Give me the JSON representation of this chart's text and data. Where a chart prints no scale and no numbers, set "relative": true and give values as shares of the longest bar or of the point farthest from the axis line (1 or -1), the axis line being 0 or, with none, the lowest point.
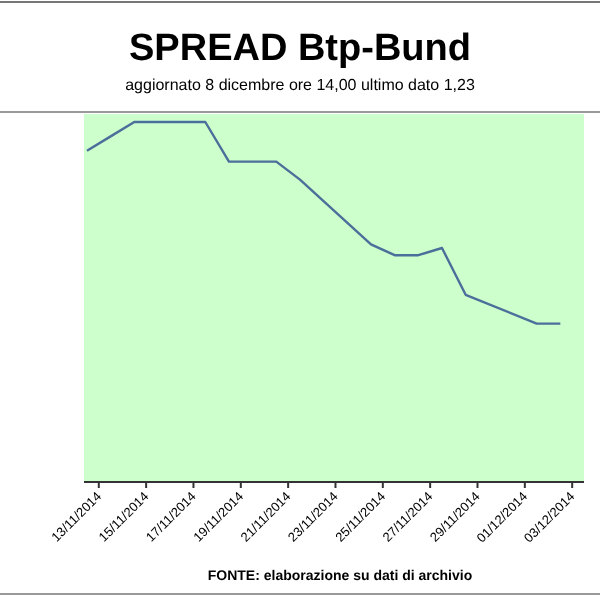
{
  "chart_data": {
    "type": "line",
    "title": "SPREAD Btp-Bund",
    "subtitle": "aggiornato 8 dicembre ore 14,00  ultimo dato  1,23",
    "relative": true,
    "tick_labels": "x",
    "marker": "none",
    "line_style": "solid",
    "x": [
      "2014-11-12T12:00",
      "2014-11-13T12:00",
      "2014-11-14T12:00",
      "2014-11-17T12:00",
      "2014-11-18T12:00",
      "2014-11-20T12:00",
      "2014-11-21T12:00",
      "2014-11-24T12:00",
      "2014-11-25T12:00",
      "2014-11-26T12:00",
      "2014-11-27T12:00",
      "2014-11-28T12:00",
      "2014-12-01T12:00",
      "2014-12-02T12:00"
    ],
    "series": [
      {
        "color": "#4a6f9a",
        "values": [
          0.92,
          0.96,
          1,
          1,
          0.89,
          0.89,
          0.84,
          0.66,
          0.63,
          0.63,
          0.65,
          0.52,
          0.44,
          0.44
        ]
      }
    ],
    "xlim": [
      "2014-11-12T09:00",
      "2014-12-03T12:00"
    ],
    "xticks": [
      {
        "value": "2014-11-13",
        "label": "13/11/2014"
      },
      {
        "value": "2014-11-15",
        "label": "15/11/2014"
      },
      {
        "value": "2014-11-17",
        "label": "17/11/2014"
      },
      {
        "value": "2014-11-19",
        "label": "19/11/2014"
      },
      {
        "value": "2014-11-21",
        "label": "21/11/2014"
      },
      {
        "value": "2014-11-23",
        "label": "23/11/2014"
      },
      {
        "value": "2014-11-25",
        "label": "25/11/2014"
      },
      {
        "value": "2014-11-27",
        "label": "27/11/2014"
      },
      {
        "value": "2014-11-29",
        "label": "29/11/2014"
      },
      {
        "value": "2014-12-01",
        "label": "01/12/2014"
      },
      {
        "value": "2014-12-03",
        "label": "03/12/2014"
      }
    ],
    "annotations": [
      "FONTE: elaborazione su dati di archivio"
    ]
  }
}
